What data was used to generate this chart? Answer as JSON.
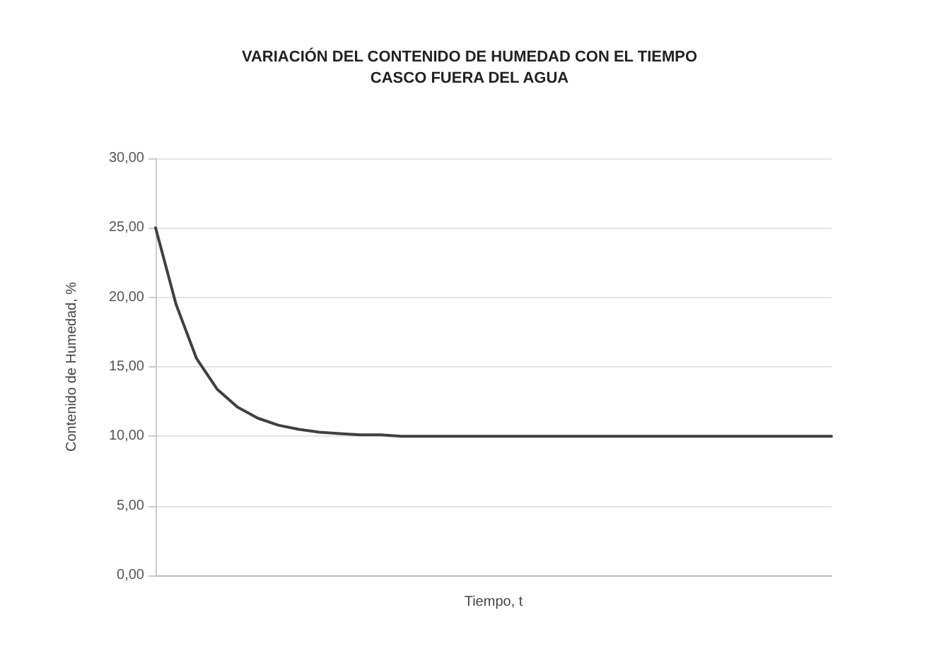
{
  "chart_data": {
    "type": "line",
    "title": "VARIACIÓN DEL CONTENIDO DE HUMEDAD CON EL TIEMPO",
    "subtitle": "CASCO FUERA DEL AGUA",
    "xlabel": "Tiempo, t",
    "ylabel": "Contenido de Humedad, %",
    "categories": [
      null,
      null,
      null,
      null,
      null,
      null,
      null,
      null,
      null,
      null,
      null,
      null,
      null,
      null,
      null,
      null,
      null,
      null,
      null,
      null,
      null,
      null,
      null,
      null,
      null,
      null,
      null,
      null,
      null,
      null,
      null,
      null,
      null,
      null
    ],
    "series": [
      {
        "color": "#404040",
        "values": [
          25,
          19.5,
          15.6,
          13.4,
          12.1,
          11.3,
          10.8,
          10.5,
          10.3,
          10.2,
          10.1,
          10.1,
          10,
          10,
          10,
          10,
          10,
          10,
          10,
          10,
          10,
          10,
          10,
          10,
          10,
          10,
          10,
          10,
          10,
          10,
          10,
          10,
          10,
          10
        ]
      }
    ],
    "ylim": [
      0,
      30
    ],
    "yticks": [
      {
        "value": 0,
        "label": "0,00"
      },
      {
        "value": 5,
        "label": "5,00"
      },
      {
        "value": 10,
        "label": "10,00"
      },
      {
        "value": 15,
        "label": "15,00"
      },
      {
        "value": 20,
        "label": "20,00"
      },
      {
        "value": 25,
        "label": "25,00"
      },
      {
        "value": 30,
        "label": "30,00"
      }
    ],
    "grid": "y",
    "tick_labels": "y",
    "marker": "none",
    "line_style": "solid"
  }
}
